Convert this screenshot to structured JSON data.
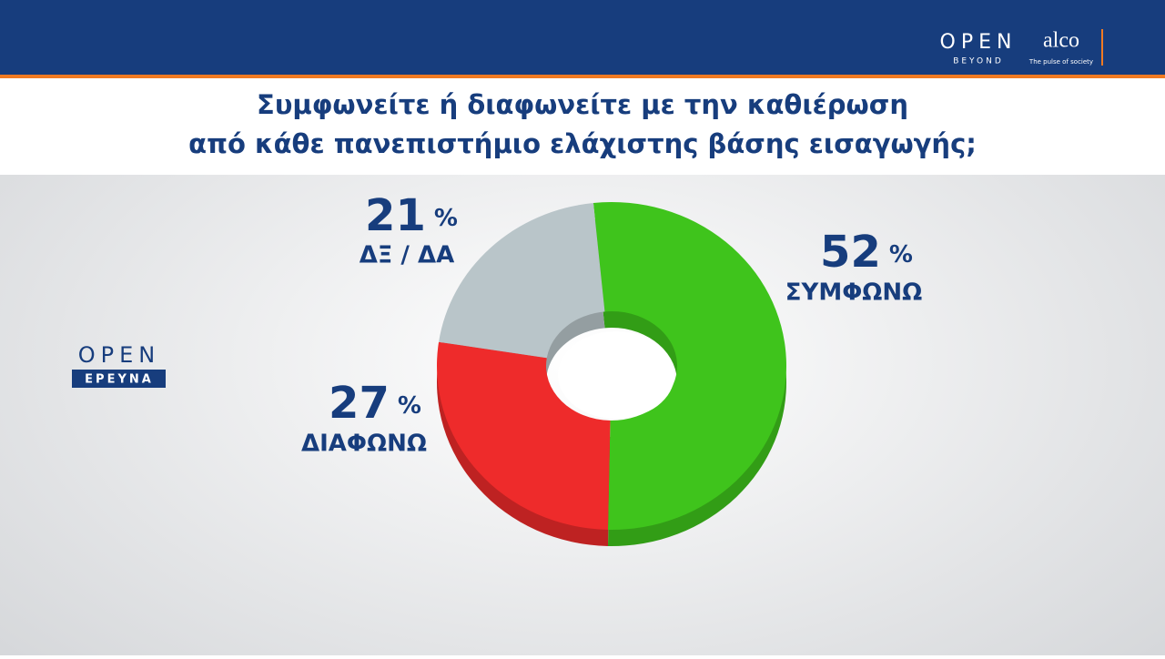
{
  "chart_data": {
    "type": "donut",
    "title": [
      "Συμφωνείτε ή διαφωνείτε με την καθιέρωση",
      "από κάθε πανεπιστήμιο ελάχιστης βάσης εισαγωγής;"
    ],
    "categories": [
      "ΣΥΜΦΩΝΩ",
      "ΔΙΑΦΩΝΩ",
      "ΔΞ / ΔΑ"
    ],
    "values": [
      52,
      27,
      21
    ],
    "value_labels": [
      "52 %",
      "27 %",
      "21 %"
    ],
    "colors": [
      "#3fc41c",
      "#ee2b2b",
      "#b9c5c9"
    ]
  },
  "branding": {
    "top_logo": "OPEN",
    "top_logo_sub": "BEYOND",
    "partner": "alco",
    "partner_sub": "The pulse of society",
    "side_logo": "OPEN",
    "side_logo_sub": "ΕΡΕΥΝΑ"
  }
}
